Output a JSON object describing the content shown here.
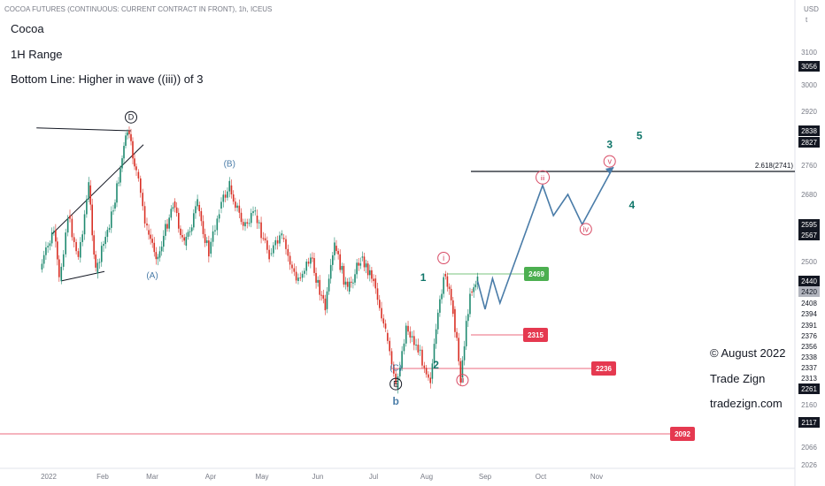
{
  "header": {
    "symbol": "COCOA FUTURES (CONTINUOUS: CURRENT CONTRACT IN FRONT), 1h, ICEUS",
    "currency": "USD",
    "unit_hint": "t"
  },
  "notes": [
    "Cocoa",
    "1H Range",
    "Bottom Line: Higher in wave ((iii)) of 3"
  ],
  "branding": [
    "© August 2022",
    "Trade Zign",
    "tradezign.com"
  ],
  "colors": {
    "candle_up": "#1f8a70",
    "candle_down": "#d93025",
    "wave_blue": "#4a7ca8",
    "wave_teal": "#10766a",
    "wave_pink": "#d84a64",
    "green_label": "#4caf50",
    "red_label": "#e53950",
    "axis_text": "#787b86"
  },
  "chart_data": {
    "type": "line",
    "title": "",
    "xlabel": "",
    "ylabel": "USD",
    "ylim": [
      2000,
      3160
    ],
    "x_ticks": [
      "2022",
      "Feb",
      "Mar",
      "Apr",
      "May",
      "Jun",
      "Jul",
      "Aug",
      "Sep",
      "Oct",
      "Nov"
    ],
    "y_ticks": [
      3100,
      3000,
      2920,
      2760,
      2680,
      2500,
      2160,
      2066,
      2026
    ],
    "price_badges": [
      {
        "value": "3056",
        "style": "dark"
      },
      {
        "value": "2838",
        "style": "dark"
      },
      {
        "value": "2827",
        "style": "dark"
      },
      {
        "value": "2595",
        "style": "dark"
      },
      {
        "value": "2567",
        "style": "dark"
      },
      {
        "value": "2440",
        "style": "dark"
      },
      {
        "value": "2420",
        "style": "gray"
      },
      {
        "value": "2408",
        "style": "plain"
      },
      {
        "value": "2394",
        "style": "plain"
      },
      {
        "value": "2391",
        "style": "plain"
      },
      {
        "value": "2376",
        "style": "plain"
      },
      {
        "value": "2356",
        "style": "plain"
      },
      {
        "value": "2338",
        "style": "plain"
      },
      {
        "value": "2337",
        "style": "plain"
      },
      {
        "value": "2313",
        "style": "plain"
      },
      {
        "value": "2261",
        "style": "dark"
      },
      {
        "value": "2117",
        "style": "dark"
      }
    ],
    "key_levels": [
      {
        "value": 2741,
        "label": "2.618(2741)",
        "color": "#131722"
      },
      {
        "value": 2469,
        "label": "2469",
        "color": "#4caf50"
      },
      {
        "value": 2315,
        "label": "2315",
        "color": "#e53950"
      },
      {
        "value": 2236,
        "label": "2236",
        "color": "#e53950"
      },
      {
        "value": 2092,
        "label": "2092",
        "color": "#e53950"
      }
    ],
    "price_path": [
      {
        "date": "2021-12-27",
        "price": 2480
      },
      {
        "date": "2022-01-04",
        "price": 2580
      },
      {
        "date": "2022-01-07",
        "price": 2440
      },
      {
        "date": "2022-01-12",
        "price": 2620
      },
      {
        "date": "2022-01-18",
        "price": 2510
      },
      {
        "date": "2022-01-24",
        "price": 2700
      },
      {
        "date": "2022-01-28",
        "price": 2470
      },
      {
        "date": "2022-02-07",
        "price": 2640
      },
      {
        "date": "2022-02-12",
        "price": 2780
      },
      {
        "date": "2022-02-15",
        "price": 2838
      },
      {
        "date": "2022-02-20",
        "price": 2730
      },
      {
        "date": "2022-02-26",
        "price": 2580
      },
      {
        "date": "2022-03-04",
        "price": 2510
      },
      {
        "date": "2022-03-12",
        "price": 2660
      },
      {
        "date": "2022-03-18",
        "price": 2540
      },
      {
        "date": "2022-03-25",
        "price": 2650
      },
      {
        "date": "2022-03-31",
        "price": 2520
      },
      {
        "date": "2022-04-06",
        "price": 2640
      },
      {
        "date": "2022-04-12",
        "price": 2700
      },
      {
        "date": "2022-04-20",
        "price": 2590
      },
      {
        "date": "2022-04-27",
        "price": 2620
      },
      {
        "date": "2022-05-05",
        "price": 2520
      },
      {
        "date": "2022-05-12",
        "price": 2560
      },
      {
        "date": "2022-05-20",
        "price": 2440
      },
      {
        "date": "2022-05-28",
        "price": 2510
      },
      {
        "date": "2022-06-05",
        "price": 2400
      },
      {
        "date": "2022-06-10",
        "price": 2540
      },
      {
        "date": "2022-06-17",
        "price": 2420
      },
      {
        "date": "2022-06-24",
        "price": 2510
      },
      {
        "date": "2022-07-01",
        "price": 2450
      },
      {
        "date": "2022-07-08",
        "price": 2380
      },
      {
        "date": "2022-07-14",
        "price": 2261
      },
      {
        "date": "2022-07-20",
        "price": 2390
      },
      {
        "date": "2022-07-27",
        "price": 2350
      },
      {
        "date": "2022-08-03",
        "price": 2310
      },
      {
        "date": "2022-08-10",
        "price": 2469
      },
      {
        "date": "2022-08-15",
        "price": 2400
      },
      {
        "date": "2022-08-19",
        "price": 2315
      },
      {
        "date": "2022-08-24",
        "price": 2420
      },
      {
        "date": "2022-08-28",
        "price": 2440
      }
    ],
    "projection": [
      {
        "date": "2022-08-28",
        "price": 2440
      },
      {
        "date": "2022-09-01",
        "price": 2400
      },
      {
        "date": "2022-09-05",
        "price": 2450
      },
      {
        "date": "2022-09-09",
        "price": 2408
      },
      {
        "date": "2022-10-02",
        "price": 2700
      },
      {
        "date": "2022-10-08",
        "price": 2620
      },
      {
        "date": "2022-10-16",
        "price": 2680
      },
      {
        "date": "2022-10-24",
        "price": 2595
      },
      {
        "date": "2022-11-10",
        "price": 2741
      }
    ],
    "trendlines": [
      {
        "from": {
          "date": "2021-12-25",
          "price": 2850
        },
        "to": {
          "date": "2022-02-17",
          "price": 2838
        }
      },
      {
        "from": {
          "date": "2022-01-03",
          "price": 2570
        },
        "to": {
          "date": "2022-02-24",
          "price": 2820
        }
      },
      {
        "from": {
          "date": "2022-01-08",
          "price": 2440
        },
        "to": {
          "date": "2022-02-02",
          "price": 2475
        }
      }
    ],
    "wave_labels": [
      {
        "text": "D",
        "circled": true,
        "date": "2022-02-17",
        "price": 2880,
        "color": "#131722"
      },
      {
        "text": "(B)",
        "date": "2022-04-12",
        "price": 2745,
        "color": "#4a7ca8"
      },
      {
        "text": "(A)",
        "date": "2022-03-01",
        "price": 2450,
        "color": "#4a7ca8"
      },
      {
        "text": "(C)",
        "date": "2022-07-14",
        "price": 2231,
        "color": "#4a7ca8"
      },
      {
        "text": "E",
        "circled": true,
        "date": "2022-07-14",
        "price": 2196,
        "color": "#131722"
      },
      {
        "text": "b",
        "date": "2022-07-14",
        "price": 2160,
        "color": "#4a7ca8"
      },
      {
        "text": "1",
        "date": "2022-07-30",
        "price": 2440,
        "color": "#10766a"
      },
      {
        "text": "2",
        "date": "2022-08-06",
        "price": 2236,
        "color": "#10766a"
      },
      {
        "text": "3",
        "date": "2022-11-08",
        "price": 2810,
        "color": "#10766a"
      },
      {
        "text": "4",
        "date": "2022-11-20",
        "price": 2640,
        "color": "#10766a"
      },
      {
        "text": "5",
        "date": "2022-11-24",
        "price": 2830,
        "color": "#10766a"
      },
      {
        "text": "i",
        "circled": true,
        "date": "2022-08-10",
        "price": 2500,
        "color": "#d84a64"
      },
      {
        "text": "ii",
        "circled": true,
        "date": "2022-08-20",
        "price": 2286,
        "color": "#d84a64"
      },
      {
        "text": "iii",
        "circled": true,
        "date": "2022-10-02",
        "price": 2710,
        "color": "#d84a64"
      },
      {
        "text": "iv",
        "circled": true,
        "date": "2022-10-26",
        "price": 2573,
        "color": "#d84a64"
      },
      {
        "text": "v",
        "circled": true,
        "date": "2022-11-08",
        "price": 2761,
        "color": "#d84a64"
      }
    ]
  }
}
